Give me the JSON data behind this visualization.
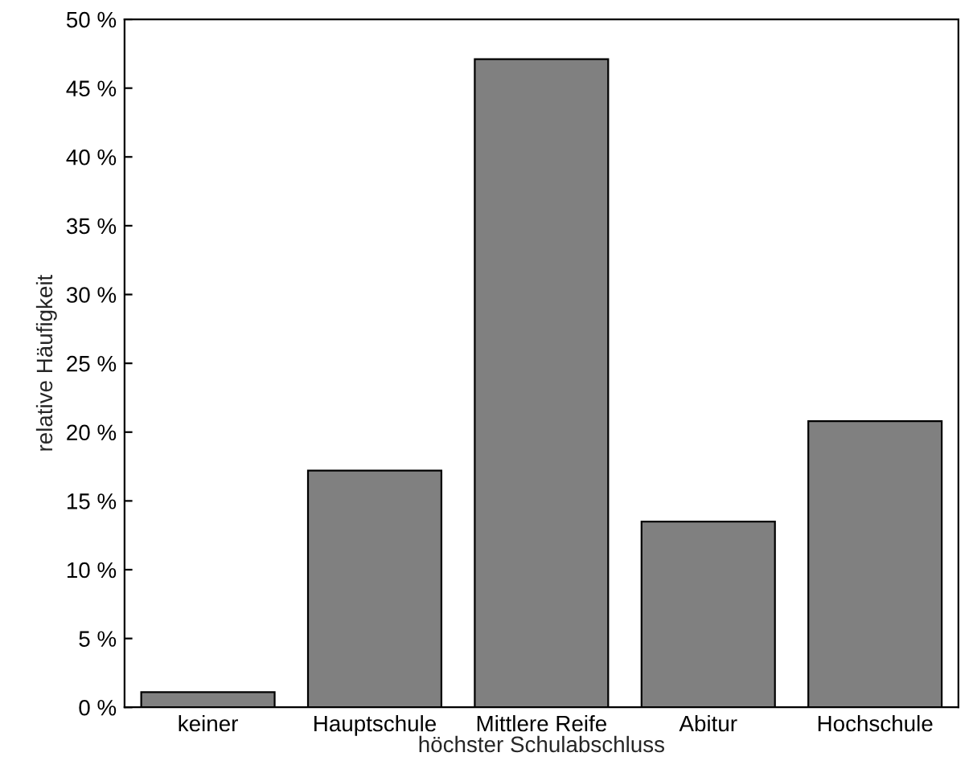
{
  "chart_data": {
    "type": "bar",
    "xlabel": "höchster Schulabschluss",
    "ylabel": "relative Häufigkeit",
    "categories": [
      "keiner",
      "Hauptschule",
      "Mittlere Reife",
      "Abitur",
      "Hochschule"
    ],
    "values": [
      1.1,
      17.2,
      47.1,
      13.5,
      20.8
    ],
    "color": "#808080",
    "ylim": [
      0,
      50
    ],
    "yticks": [
      {
        "value": 0,
        "label": "0 %"
      },
      {
        "value": 5,
        "label": "5 %"
      },
      {
        "value": 10,
        "label": "10 %"
      },
      {
        "value": 15,
        "label": "15 %"
      },
      {
        "value": 20,
        "label": "20 %"
      },
      {
        "value": 25,
        "label": "25 %"
      },
      {
        "value": 30,
        "label": "30 %"
      },
      {
        "value": 35,
        "label": "35 %"
      },
      {
        "value": 40,
        "label": "40 %"
      },
      {
        "value": 45,
        "label": "45 %"
      },
      {
        "value": 50,
        "label": "50 %"
      }
    ],
    "grid": false
  }
}
